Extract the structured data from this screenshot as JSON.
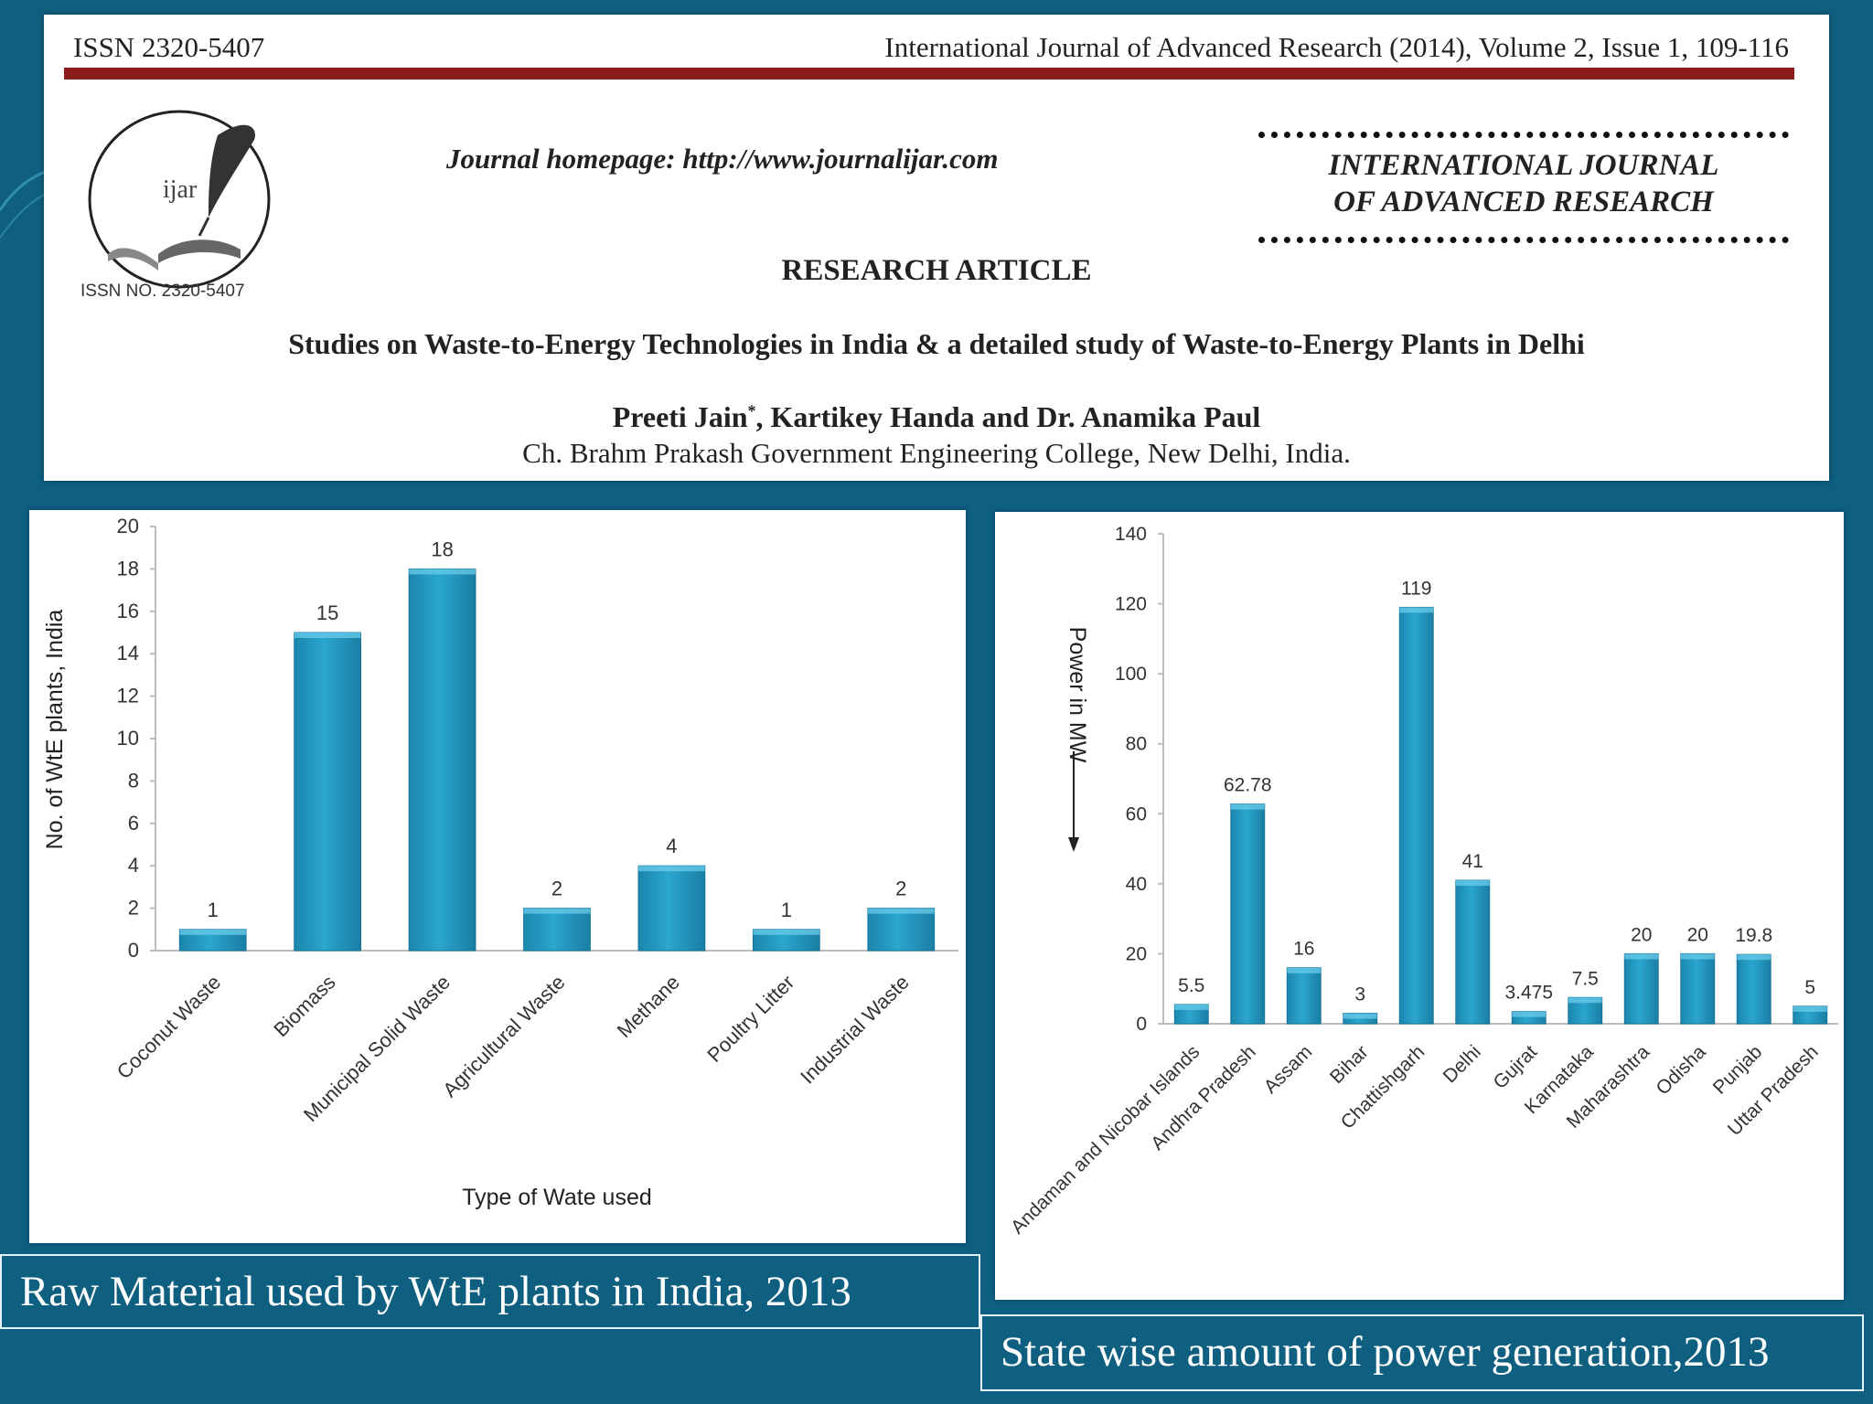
{
  "header": {
    "issn": "ISSN 2320-5407",
    "citation": "International Journal of Advanced Research (2014), Volume 2, Issue 1, 109-116",
    "logo_text": "ijar",
    "logo_issn": "ISSN NO. 2320-5407",
    "homepage": "Journal homepage: http://www.journalijar.com",
    "journal_name_line1": "INTERNATIONAL JOURNAL",
    "journal_name_line2": "OF ADVANCED RESEARCH",
    "article_type": "RESEARCH ARTICLE",
    "title": "Studies on Waste-to-Energy Technologies in India & a detailed study of Waste-to-Energy Plants in Delhi",
    "authors": "Preeti Jain*, Kartikey Handa and Dr. Anamika Paul",
    "affiliation": "Ch. Brahm Prakash Government Engineering College, New Delhi, India."
  },
  "captions": {
    "chart1": "Raw Material used by WtE plants in India, 2013",
    "chart2": "State wise amount of power generation,2013"
  },
  "colors": {
    "background": "#0f5f80",
    "bar": "#2aa6cf",
    "rule": "#8a1c1c"
  },
  "chart_data": [
    {
      "type": "bar",
      "categories": [
        "Coconut Waste",
        "Biomass",
        "Municipal Solid Waste",
        "Agricultural Waste",
        "Methane",
        "Poultry Litter",
        "Industrial Waste"
      ],
      "values": [
        1,
        15,
        18,
        2,
        4,
        1,
        2
      ],
      "data_labels": [
        "1",
        "15",
        "18",
        "2",
        "4",
        "1",
        "2"
      ],
      "xlabel": "Type of Wate used",
      "ylabel": "No. of WtE plants, India",
      "ylim": [
        0,
        20
      ],
      "yticks": [
        0,
        2,
        4,
        6,
        8,
        10,
        12,
        14,
        16,
        18,
        20
      ],
      "grid": false
    },
    {
      "type": "bar",
      "categories": [
        "Andaman and Nicobar Islands",
        "Andhra Pradesh",
        "Assam",
        "Bihar",
        "Chattishgarh",
        "Delhi",
        "Gujrat",
        "Karnataka",
        "Maharashtra",
        "Odisha",
        "Punjab",
        "Uttar Pradesh"
      ],
      "values": [
        5.5,
        62.78,
        16,
        3,
        119,
        41,
        3.475,
        7.5,
        20,
        20,
        19.8,
        5
      ],
      "data_labels": [
        "5.5",
        "62.78",
        "16",
        "3",
        "119",
        "41",
        "3.475",
        "7.5",
        "20",
        "20",
        "19.8",
        "5"
      ],
      "ylabel": "Power in MW",
      "ylim": [
        0,
        140
      ],
      "yticks": [
        0,
        20,
        40,
        60,
        80,
        100,
        120,
        140
      ],
      "grid": false
    }
  ]
}
